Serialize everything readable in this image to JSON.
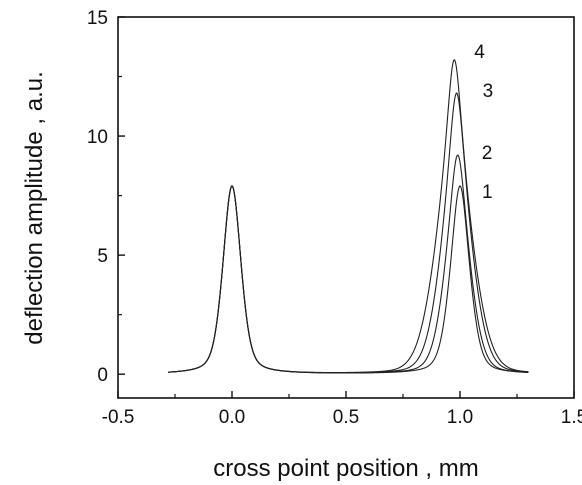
{
  "chart_data": {
    "type": "line",
    "title": "",
    "xlabel": "cross point position , mm",
    "ylabel": "deflection amplitude , a.u.",
    "xlim": [
      -0.5,
      1.5
    ],
    "ylim": [
      -1,
      15
    ],
    "x_ticks": [
      -0.5,
      0.0,
      0.5,
      1.0,
      1.5
    ],
    "x_tick_labels": [
      "-0.5",
      "0.0",
      "0.5",
      "1.0",
      "1.5"
    ],
    "y_ticks": [
      0,
      5,
      10,
      15
    ],
    "y_tick_labels": [
      "0",
      "5",
      "10",
      "15"
    ],
    "grid": false,
    "x_range_of_curves": [
      -0.28,
      1.3
    ],
    "reference_peak": {
      "x": 0.0,
      "y": 7.9
    },
    "series": [
      {
        "label": "1",
        "peak_x": 1.0,
        "peak_y": 7.9
      },
      {
        "label": "2",
        "peak_x": 0.99,
        "peak_y": 9.2
      },
      {
        "label": "3",
        "peak_x": 0.985,
        "peak_y": 11.8
      },
      {
        "label": "4",
        "peak_x": 0.975,
        "peak_y": 13.2
      }
    ]
  }
}
